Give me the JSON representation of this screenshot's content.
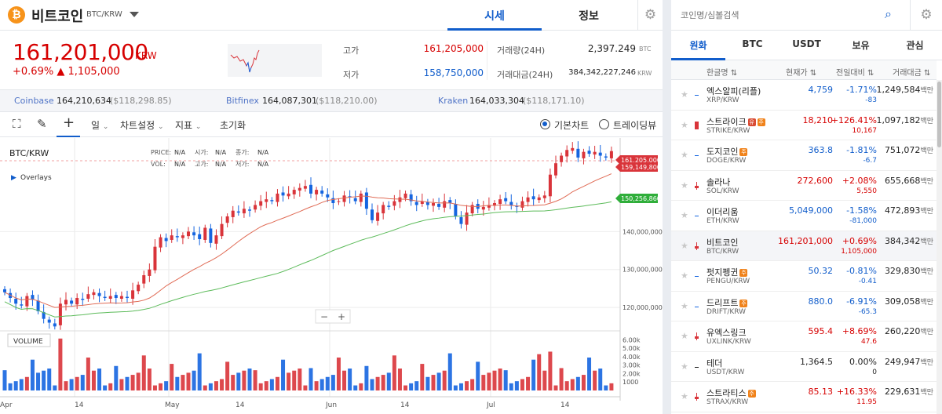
{
  "header": {
    "coin_name": "비트코인",
    "pair": "BTC/KRW",
    "tabs": [
      "시세",
      "정보"
    ]
  },
  "ticker": {
    "price": "161,201,000",
    "unit": "KRW",
    "change_pct": "+0.69%",
    "change_amt": "▲ 1,105,000",
    "high_label": "고가",
    "high": "161,205,000",
    "low_label": "저가",
    "low": "158,750,000",
    "vol_label": "거래량(24H)",
    "vol": "2,397.249",
    "vol_unit": "BTC",
    "amt_label": "거래대금(24H)",
    "amt": "384,342,227,246",
    "amt_unit": "KRW"
  },
  "exchanges": [
    {
      "name": "Coinbase",
      "price": "164,210,634",
      "usd": "($118,298.85)"
    },
    {
      "name": "Bitfinex",
      "price": "164,087,301",
      "usd": "($118,210.00)"
    },
    {
      "name": "Kraken",
      "price": "164,033,304",
      "usd": "($118,171.10)"
    }
  ],
  "toolbar": {
    "interval": "일",
    "chart_settings": "차트설정",
    "indicators": "지표",
    "reset": "초기화",
    "basic_chart": "기본차트",
    "tradingview": "트레이딩뷰"
  },
  "chart_data": {
    "type": "candlestick",
    "pair_label": "BTC/KRW",
    "overlays_label": "Overlays",
    "volume_label": "VOLUME",
    "legend": {
      "price": "PRICE:",
      "vol": "VOL:",
      "open": "시가:",
      "high": "고가:",
      "close": "종가:",
      "low": "저가:",
      "na": "N/A"
    },
    "price_ticks": [
      "140,000,000",
      "130,000,000",
      "120,000,000"
    ],
    "price_tick_values": [
      140000000,
      130000000,
      120000000
    ],
    "volume_ticks": [
      "6.00k",
      "5.00k",
      "4.00k",
      "3.00k",
      "2.00k",
      "1000"
    ],
    "volume_tick_values": [
      6000,
      5000,
      4000,
      3000,
      2000,
      1000
    ],
    "x_labels": [
      "Apr",
      "14",
      "May",
      "14",
      "Jun",
      "14",
      "Jul",
      "14"
    ],
    "price_tags": [
      {
        "label": "161,205,000",
        "color": "#d9343a"
      },
      {
        "label": "159,149,800",
        "color": "#d9343a"
      },
      {
        "label": "150,256,860",
        "color": "#2fae3a"
      }
    ],
    "zoom_minus": "−",
    "zoom_plus": "+",
    "ylim": [
      113000000,
      163000000
    ],
    "closes": [
      124,
      122.5,
      121,
      120.5,
      123,
      122,
      119,
      117,
      116,
      115,
      121,
      122,
      121,
      122.5,
      122,
      123.5,
      124,
      123,
      122.5,
      123,
      122.5,
      123,
      122.5,
      124.5,
      126,
      128.5,
      130,
      136,
      138.5,
      137.5,
      139,
      138.5,
      139,
      140,
      139,
      138,
      141,
      137,
      139,
      142,
      144,
      145.5,
      145,
      146,
      145.5,
      147,
      148,
      148.5,
      148,
      150,
      149.5,
      150,
      151,
      151.5,
      152,
      150,
      151,
      150,
      149,
      147.5,
      148,
      149.5,
      149,
      148,
      150,
      146,
      143,
      145,
      147,
      146.5,
      148,
      149,
      150,
      148,
      147,
      148,
      147,
      147.5,
      146.5,
      148,
      147.5,
      144,
      142,
      145,
      147,
      146,
      146.5,
      147,
      147.5,
      148.5,
      148,
      147,
      146.5,
      148,
      149,
      148.5,
      149,
      149.5,
      155,
      158,
      160,
      161.5,
      162,
      159.5,
      161,
      160.5,
      161,
      160,
      159.5,
      161.2
    ]
  },
  "market": {
    "search_placeholder": "코인명/심볼검색",
    "tabs": [
      "원화",
      "BTC",
      "USDT",
      "보유",
      "관심"
    ],
    "columns": [
      "한글명 ⇅",
      "현재가 ⇅",
      "전일대비 ⇅",
      "거래대금 ⇅"
    ],
    "rows": [
      {
        "name": "엑스알피(리플)",
        "symbol": "XRP/KRW",
        "price": "4,759",
        "pct": "-1.71%",
        "amt": "-83",
        "vol": "1,249,584",
        "unit": "백만",
        "up": false,
        "warn": ""
      },
      {
        "name": "스트라이크",
        "symbol": "STRIKE/KRW",
        "price": "18,210",
        "pct": "+126.41%",
        "amt": "10,167",
        "vol": "1,097,182",
        "unit": "백만",
        "up": true,
        "warn": "유주"
      },
      {
        "name": "도지코인",
        "symbol": "DOGE/KRW",
        "price": "363.8",
        "pct": "-1.81%",
        "amt": "-6.7",
        "vol": "751,072",
        "unit": "백만",
        "up": false,
        "warn": "주"
      },
      {
        "name": "솔라나",
        "symbol": "SOL/KRW",
        "price": "272,600",
        "pct": "+2.08%",
        "amt": "5,550",
        "vol": "655,668",
        "unit": "백만",
        "up": true,
        "warn": ""
      },
      {
        "name": "이더리움",
        "symbol": "ETH/KRW",
        "price": "5,049,000",
        "pct": "-1.58%",
        "amt": "-81,000",
        "vol": "472,893",
        "unit": "백만",
        "up": false,
        "warn": ""
      },
      {
        "name": "비트코인",
        "symbol": "BTC/KRW",
        "price": "161,201,000",
        "pct": "+0.69%",
        "amt": "1,105,000",
        "vol": "384,342",
        "unit": "백만",
        "up": true,
        "warn": ""
      },
      {
        "name": "펏지펭귄",
        "symbol": "PENGU/KRW",
        "price": "50.32",
        "pct": "-0.81%",
        "amt": "-0.41",
        "vol": "329,830",
        "unit": "백만",
        "up": false,
        "warn": "주"
      },
      {
        "name": "드리프트",
        "symbol": "DRIFT/KRW",
        "price": "880.0",
        "pct": "-6.91%",
        "amt": "-65.3",
        "vol": "309,058",
        "unit": "백만",
        "up": false,
        "warn": "주"
      },
      {
        "name": "유엑스링크",
        "symbol": "UXLINK/KRW",
        "price": "595.4",
        "pct": "+8.69%",
        "amt": "47.6",
        "vol": "260,220",
        "unit": "백만",
        "up": true,
        "warn": ""
      },
      {
        "name": "테더",
        "symbol": "USDT/KRW",
        "price": "1,364.5",
        "pct": "0.00%",
        "amt": "0",
        "vol": "249,947",
        "unit": "백만",
        "up": null,
        "warn": ""
      },
      {
        "name": "스트라티스",
        "symbol": "STRAX/KRW",
        "price": "85.13",
        "pct": "+16.33%",
        "amt": "11.95",
        "vol": "229,631",
        "unit": "백만",
        "up": true,
        "warn": "주"
      }
    ]
  },
  "colors": {
    "up": "#d60000",
    "down": "#115dcb",
    "accent": "#115dcb",
    "candle_up": "#d9343a",
    "candle_down": "#1565e0",
    "ma_short": "#e06b55",
    "ma_long": "#5cbb5a"
  }
}
